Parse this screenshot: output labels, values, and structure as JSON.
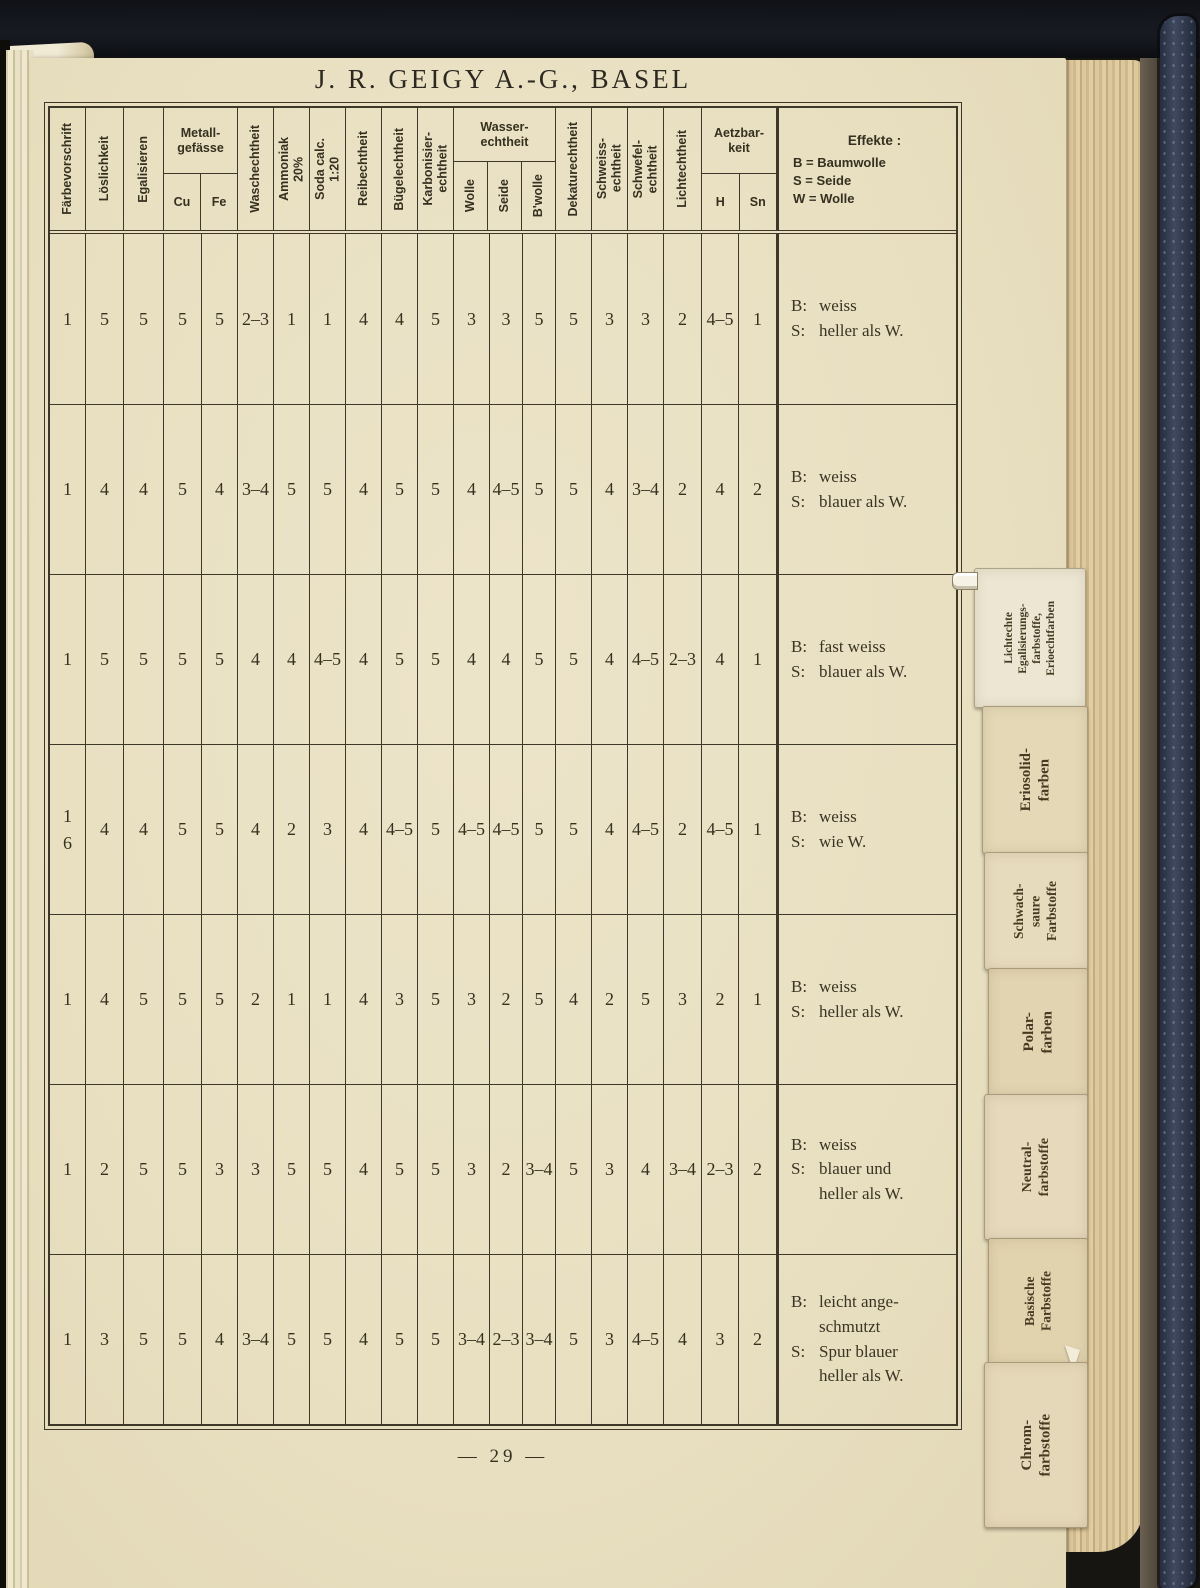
{
  "page": {
    "title": "J. R. GEIGY A.-G., BASEL",
    "page_number": "— 29 —"
  },
  "table": {
    "columns": {
      "faerbevorschrift": "Färbevorschrift",
      "loeslichkeit": "Löslichkeit",
      "egalisieren": "Egalisieren",
      "metallgefaesse": "Metall-\ngefässe",
      "cu": "Cu",
      "fe": "Fe",
      "waschechtheit": "Waschechtheit",
      "ammoniak": "Ammoniak\n20%",
      "soda": "Soda calc.\n1:20",
      "reibechtheit": "Reibechtheit",
      "buegelechtheit": "Bügelechtheit",
      "karbonisier": "Karbonisier-\nechtheit",
      "wasserechtheit": "Wasser-\nechtheit",
      "wolle": "Wolle",
      "seide": "Seide",
      "bwolle": "B'wolle",
      "dekaturechtheit": "Dekaturechtheit",
      "schweiss": "Schweiss-\nechtheit",
      "schwefel": "Schwefel-\nechtheit",
      "lichtechtheit": "Lichtechtheit",
      "aetzbarkeit": "Aetzbar-\nkeit",
      "h": "H",
      "sn": "Sn",
      "effekte_title": "Effekte :",
      "effekte_legend": [
        "B = Baumwolle",
        "S = Seide",
        "W = Wolle"
      ]
    },
    "rows": [
      {
        "values": [
          "1",
          "5",
          "5",
          "5",
          "5",
          "2–3",
          "1",
          "1",
          "4",
          "4",
          "5",
          "3",
          "3",
          "5",
          "5",
          "3",
          "3",
          "2",
          "4–5",
          "1"
        ],
        "effekte": [
          {
            "k": "B:",
            "t": "weiss"
          },
          {
            "k": "S:",
            "t": "heller als W."
          }
        ]
      },
      {
        "values": [
          "1",
          "4",
          "4",
          "5",
          "4",
          "3–4",
          "5",
          "5",
          "4",
          "5",
          "5",
          "4",
          "4–5",
          "5",
          "5",
          "4",
          "3–4",
          "2",
          "4",
          "2"
        ],
        "effekte": [
          {
            "k": "B:",
            "t": "weiss"
          },
          {
            "k": "S:",
            "t": "blauer als W."
          }
        ]
      },
      {
        "values": [
          "1",
          "5",
          "5",
          "5",
          "5",
          "4",
          "4",
          "4–5",
          "4",
          "5",
          "5",
          "4",
          "4",
          "5",
          "5",
          "4",
          "4–5",
          "2–3",
          "4",
          "1"
        ],
        "effekte": [
          {
            "k": "B:",
            "t": "fast weiss"
          },
          {
            "k": "S:",
            "t": "blauer als W."
          }
        ]
      },
      {
        "values": [
          "1\n6",
          "4",
          "4",
          "5",
          "5",
          "4",
          "2",
          "3",
          "4",
          "4–5",
          "5",
          "4–5",
          "4–5",
          "5",
          "5",
          "4",
          "4–5",
          "2",
          "4–5",
          "1"
        ],
        "effekte": [
          {
            "k": "B:",
            "t": "weiss"
          },
          {
            "k": "S:",
            "t": "wie W."
          }
        ]
      },
      {
        "values": [
          "1",
          "4",
          "5",
          "5",
          "5",
          "2",
          "1",
          "1",
          "4",
          "3",
          "5",
          "3",
          "2",
          "5",
          "4",
          "2",
          "5",
          "3",
          "2",
          "1"
        ],
        "effekte": [
          {
            "k": "B:",
            "t": "weiss"
          },
          {
            "k": "S:",
            "t": "heller als W."
          }
        ]
      },
      {
        "values": [
          "1",
          "2",
          "5",
          "5",
          "3",
          "3",
          "5",
          "5",
          "4",
          "5",
          "5",
          "3",
          "2",
          "3–4",
          "5",
          "3",
          "4",
          "3–4",
          "2–3",
          "2"
        ],
        "effekte": [
          {
            "k": "B:",
            "t": "weiss"
          },
          {
            "k": "S:",
            "t": "blauer und\nheller als W."
          }
        ]
      },
      {
        "values": [
          "1",
          "3",
          "5",
          "5",
          "4",
          "3–4",
          "5",
          "5",
          "4",
          "5",
          "5",
          "3–4",
          "2–3",
          "3–4",
          "5",
          "3",
          "4–5",
          "4",
          "3",
          "2"
        ],
        "effekte": [
          {
            "k": "B:",
            "t": "leicht ange-\nschmutzt"
          },
          {
            "k": "S:",
            "t": "Spur blauer\nheller als W."
          }
        ]
      }
    ]
  },
  "tabs": [
    {
      "id": "lichtechte-egalisierungsfarbstoffe",
      "label": "Lichtechte\nEgalisierungs-\nfarbstoffe,\nErioechtfarben"
    },
    {
      "id": "eriosolidfarben",
      "label": "Eriosolid-\nfarben"
    },
    {
      "id": "schwachsaure-farbstoffe",
      "label": "Schwach-\nsaure\nFarbstoffe"
    },
    {
      "id": "polarfarben",
      "label": "Polar-\nfarben"
    },
    {
      "id": "neutralfarbstoffe",
      "label": "Neutral-\nfarbstoffe"
    },
    {
      "id": "basische-farbstoffe",
      "label": "Basische\nFarbstoffe"
    },
    {
      "id": "chromfarbstoffe",
      "label": "Chrom-\nfarbstoffe"
    }
  ],
  "colors": {
    "page_cream": "#eae1c3",
    "table_line": "#3e382a",
    "cover_navy": "#333d55",
    "background_black": "#161511"
  }
}
